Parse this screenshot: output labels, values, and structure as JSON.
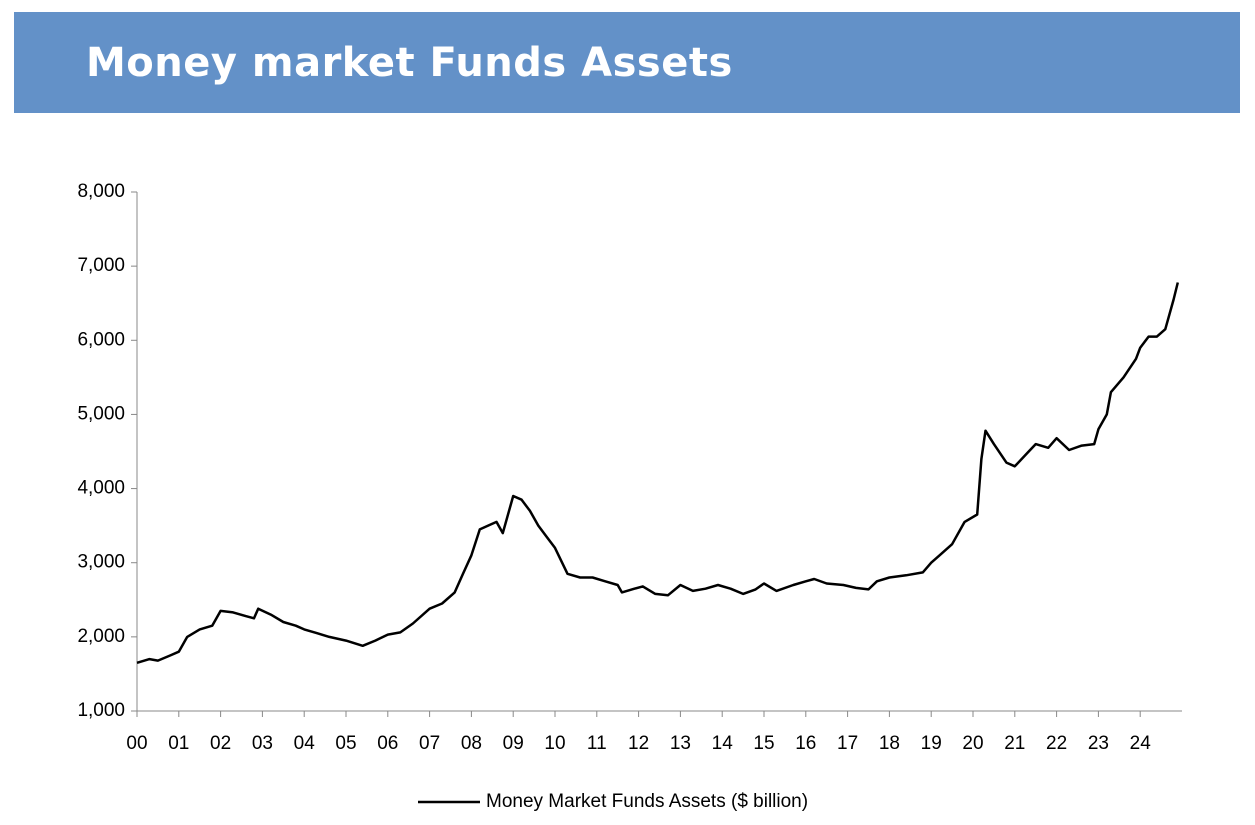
{
  "chart_data": {
    "type": "line",
    "title": "Money market Funds Assets",
    "x": [
      0.0,
      0.3,
      0.5,
      0.8,
      1.0,
      1.2,
      1.5,
      1.8,
      2.0,
      2.3,
      2.6,
      2.8,
      2.9,
      3.2,
      3.5,
      3.8,
      4.0,
      4.3,
      4.6,
      5.0,
      5.4,
      5.7,
      6.0,
      6.3,
      6.6,
      7.0,
      7.3,
      7.6,
      7.8,
      8.0,
      8.2,
      8.4,
      8.6,
      8.75,
      9.0,
      9.2,
      9.4,
      9.6,
      9.8,
      10.0,
      10.3,
      10.6,
      10.9,
      11.2,
      11.5,
      11.6,
      11.9,
      12.1,
      12.4,
      12.7,
      13.0,
      13.3,
      13.6,
      13.9,
      14.2,
      14.5,
      14.8,
      15.0,
      15.3,
      15.7,
      16.0,
      16.2,
      16.5,
      16.9,
      17.2,
      17.5,
      17.7,
      18.0,
      18.4,
      18.8,
      19.0,
      19.2,
      19.5,
      19.8,
      20.1,
      20.2,
      20.3,
      20.5,
      20.8,
      21.0,
      21.3,
      21.5,
      21.8,
      22.0,
      22.3,
      22.6,
      22.9,
      23.0,
      23.2,
      23.3,
      23.6,
      23.9,
      24.0,
      24.2,
      24.4,
      24.6,
      24.8,
      24.9
    ],
    "series": [
      {
        "name": "Money Market Funds Assets ($ billion)",
        "color": "#000000",
        "values": [
          1650,
          1700,
          1680,
          1750,
          1800,
          2000,
          2100,
          2150,
          2350,
          2330,
          2280,
          2250,
          2380,
          2300,
          2200,
          2150,
          2100,
          2050,
          2000,
          1950,
          1880,
          1950,
          2030,
          2060,
          2180,
          2380,
          2450,
          2600,
          2850,
          3100,
          3450,
          3500,
          3550,
          3400,
          3900,
          3850,
          3700,
          3500,
          3350,
          3200,
          2850,
          2800,
          2800,
          2750,
          2700,
          2600,
          2650,
          2680,
          2580,
          2560,
          2700,
          2620,
          2650,
          2700,
          2650,
          2580,
          2640,
          2720,
          2620,
          2700,
          2750,
          2780,
          2720,
          2700,
          2660,
          2640,
          2750,
          2800,
          2830,
          2870,
          3000,
          3100,
          3250,
          3550,
          3650,
          4400,
          4780,
          4600,
          4350,
          4300,
          4480,
          4600,
          4550,
          4680,
          4520,
          4580,
          4600,
          4800,
          5000,
          5300,
          5500,
          5750,
          5900,
          6050,
          6050,
          6150,
          6550,
          6780
        ]
      }
    ],
    "xlim": [
      0,
      25
    ],
    "xticks": [
      {
        "value": 0,
        "label": "00"
      },
      {
        "value": 1,
        "label": "01"
      },
      {
        "value": 2,
        "label": "02"
      },
      {
        "value": 3,
        "label": "03"
      },
      {
        "value": 4,
        "label": "04"
      },
      {
        "value": 5,
        "label": "05"
      },
      {
        "value": 6,
        "label": "06"
      },
      {
        "value": 7,
        "label": "07"
      },
      {
        "value": 8,
        "label": "08"
      },
      {
        "value": 9,
        "label": "09"
      },
      10,
      11,
      12,
      13,
      14,
      15,
      16,
      17,
      18,
      19,
      20,
      21,
      22,
      23,
      24
    ],
    "ylim": [
      1000,
      8000
    ],
    "yticks": [
      {
        "value": 1000,
        "label": "1,000"
      },
      {
        "value": 2000,
        "label": "2,000"
      },
      {
        "value": 3000,
        "label": "3,000"
      },
      {
        "value": 4000,
        "label": "4,000"
      },
      {
        "value": 5000,
        "label": "5,000"
      },
      {
        "value": 6000,
        "label": "6,000"
      },
      {
        "value": 7000,
        "label": "7,000"
      },
      {
        "value": 8000,
        "label": "8,000"
      }
    ],
    "legend": "bottom"
  }
}
